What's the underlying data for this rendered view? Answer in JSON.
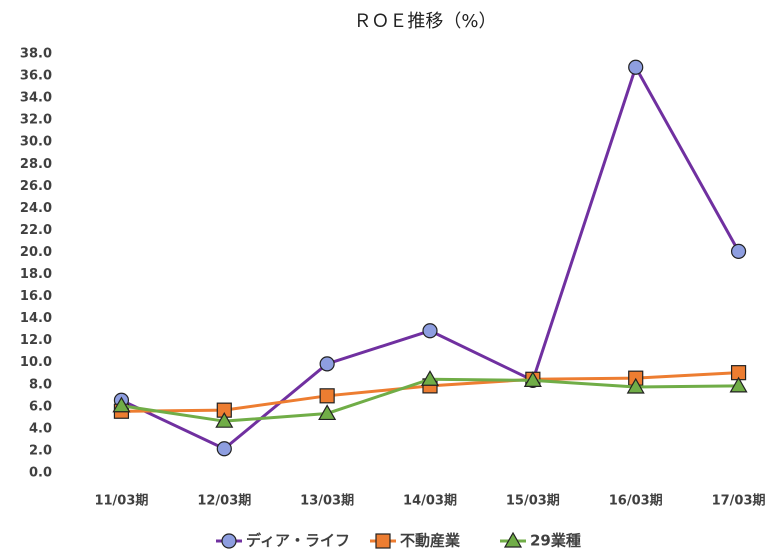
{
  "chart_data": {
    "type": "line",
    "title": "ＲＯＥ推移（%）",
    "categories": [
      "11/03期",
      "12/03期",
      "13/03期",
      "14/03期",
      "15/03期",
      "16/03期",
      "17/03期"
    ],
    "series": [
      {
        "name": "ディア・ライフ",
        "color": "#7030a0",
        "marker": "circle",
        "marker_color": "#8e9ee0",
        "values": [
          6.6,
          2.2,
          9.9,
          12.9,
          8.4,
          36.8,
          20.1
        ]
      },
      {
        "name": "不動産業",
        "color": "#ed7d31",
        "marker": "square",
        "marker_color": "#ed7d31",
        "values": [
          5.6,
          5.7,
          7.0,
          7.9,
          8.5,
          8.6,
          9.1
        ]
      },
      {
        "name": "29業種",
        "color": "#70ad47",
        "marker": "triangle",
        "marker_color": "#70ad47",
        "values": [
          6.1,
          4.7,
          5.4,
          8.5,
          8.4,
          7.8,
          7.9
        ]
      }
    ],
    "ylim": [
      0,
      38
    ],
    "yticks": [
      {
        "value": 0,
        "label": "0.0"
      },
      {
        "value": 2,
        "label": "2.0"
      },
      {
        "value": 4,
        "label": "4.0"
      },
      {
        "value": 6,
        "label": "6.0"
      },
      {
        "value": 8,
        "label": "8.0"
      },
      {
        "value": 10,
        "label": "10.0"
      },
      {
        "value": 12,
        "label": "12.0"
      },
      {
        "value": 14,
        "label": "14.0"
      },
      {
        "value": 16,
        "label": "16.0"
      },
      {
        "value": 18,
        "label": "18.0"
      },
      {
        "value": 20,
        "label": "20.0"
      },
      {
        "value": 22,
        "label": "22.0"
      },
      {
        "value": 24,
        "label": "24.0"
      },
      {
        "value": 26,
        "label": "26.0"
      },
      {
        "value": 28,
        "label": "28.0"
      },
      {
        "value": 30,
        "label": "30.0"
      },
      {
        "value": 32,
        "label": "32.0"
      },
      {
        "value": 34,
        "label": "34.0"
      },
      {
        "value": 36,
        "label": "36.0"
      },
      {
        "value": 38,
        "label": "38.0"
      }
    ],
    "grid": false,
    "legend": "bottom"
  }
}
